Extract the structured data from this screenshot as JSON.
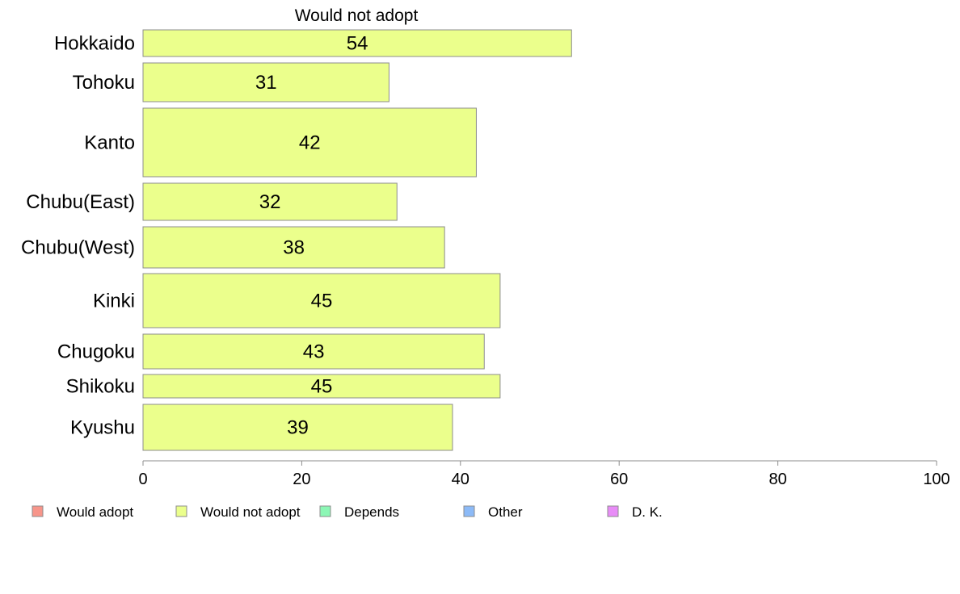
{
  "chart_data": {
    "type": "bar",
    "orientation": "horizontal",
    "title": "Would not adopt",
    "categories": [
      "Hokkaido",
      "Tohoku",
      "Kanto",
      "Chubu(East)",
      "Chubu(West)",
      "Kinki",
      "Chugoku",
      "Shikoku",
      "Kyushu"
    ],
    "series": [
      {
        "name": "Would not adopt",
        "color": "#ebff8c",
        "values": [
          54,
          31,
          42,
          32,
          38,
          45,
          43,
          45,
          39
        ]
      }
    ],
    "xlim": [
      0,
      100
    ],
    "xticks": [
      0,
      20,
      40,
      60,
      80,
      100
    ],
    "grid": false,
    "legend": {
      "placement": "bottom",
      "entries": [
        {
          "label": "Would adopt",
          "color": "#f7958a"
        },
        {
          "label": "Would not adopt",
          "color": "#ebff8c"
        },
        {
          "label": "Depends",
          "color": "#8cf7b5"
        },
        {
          "label": "Other",
          "color": "#8cbaf7"
        },
        {
          "label": "D. K.",
          "color": "#e88cf7"
        }
      ]
    }
  }
}
